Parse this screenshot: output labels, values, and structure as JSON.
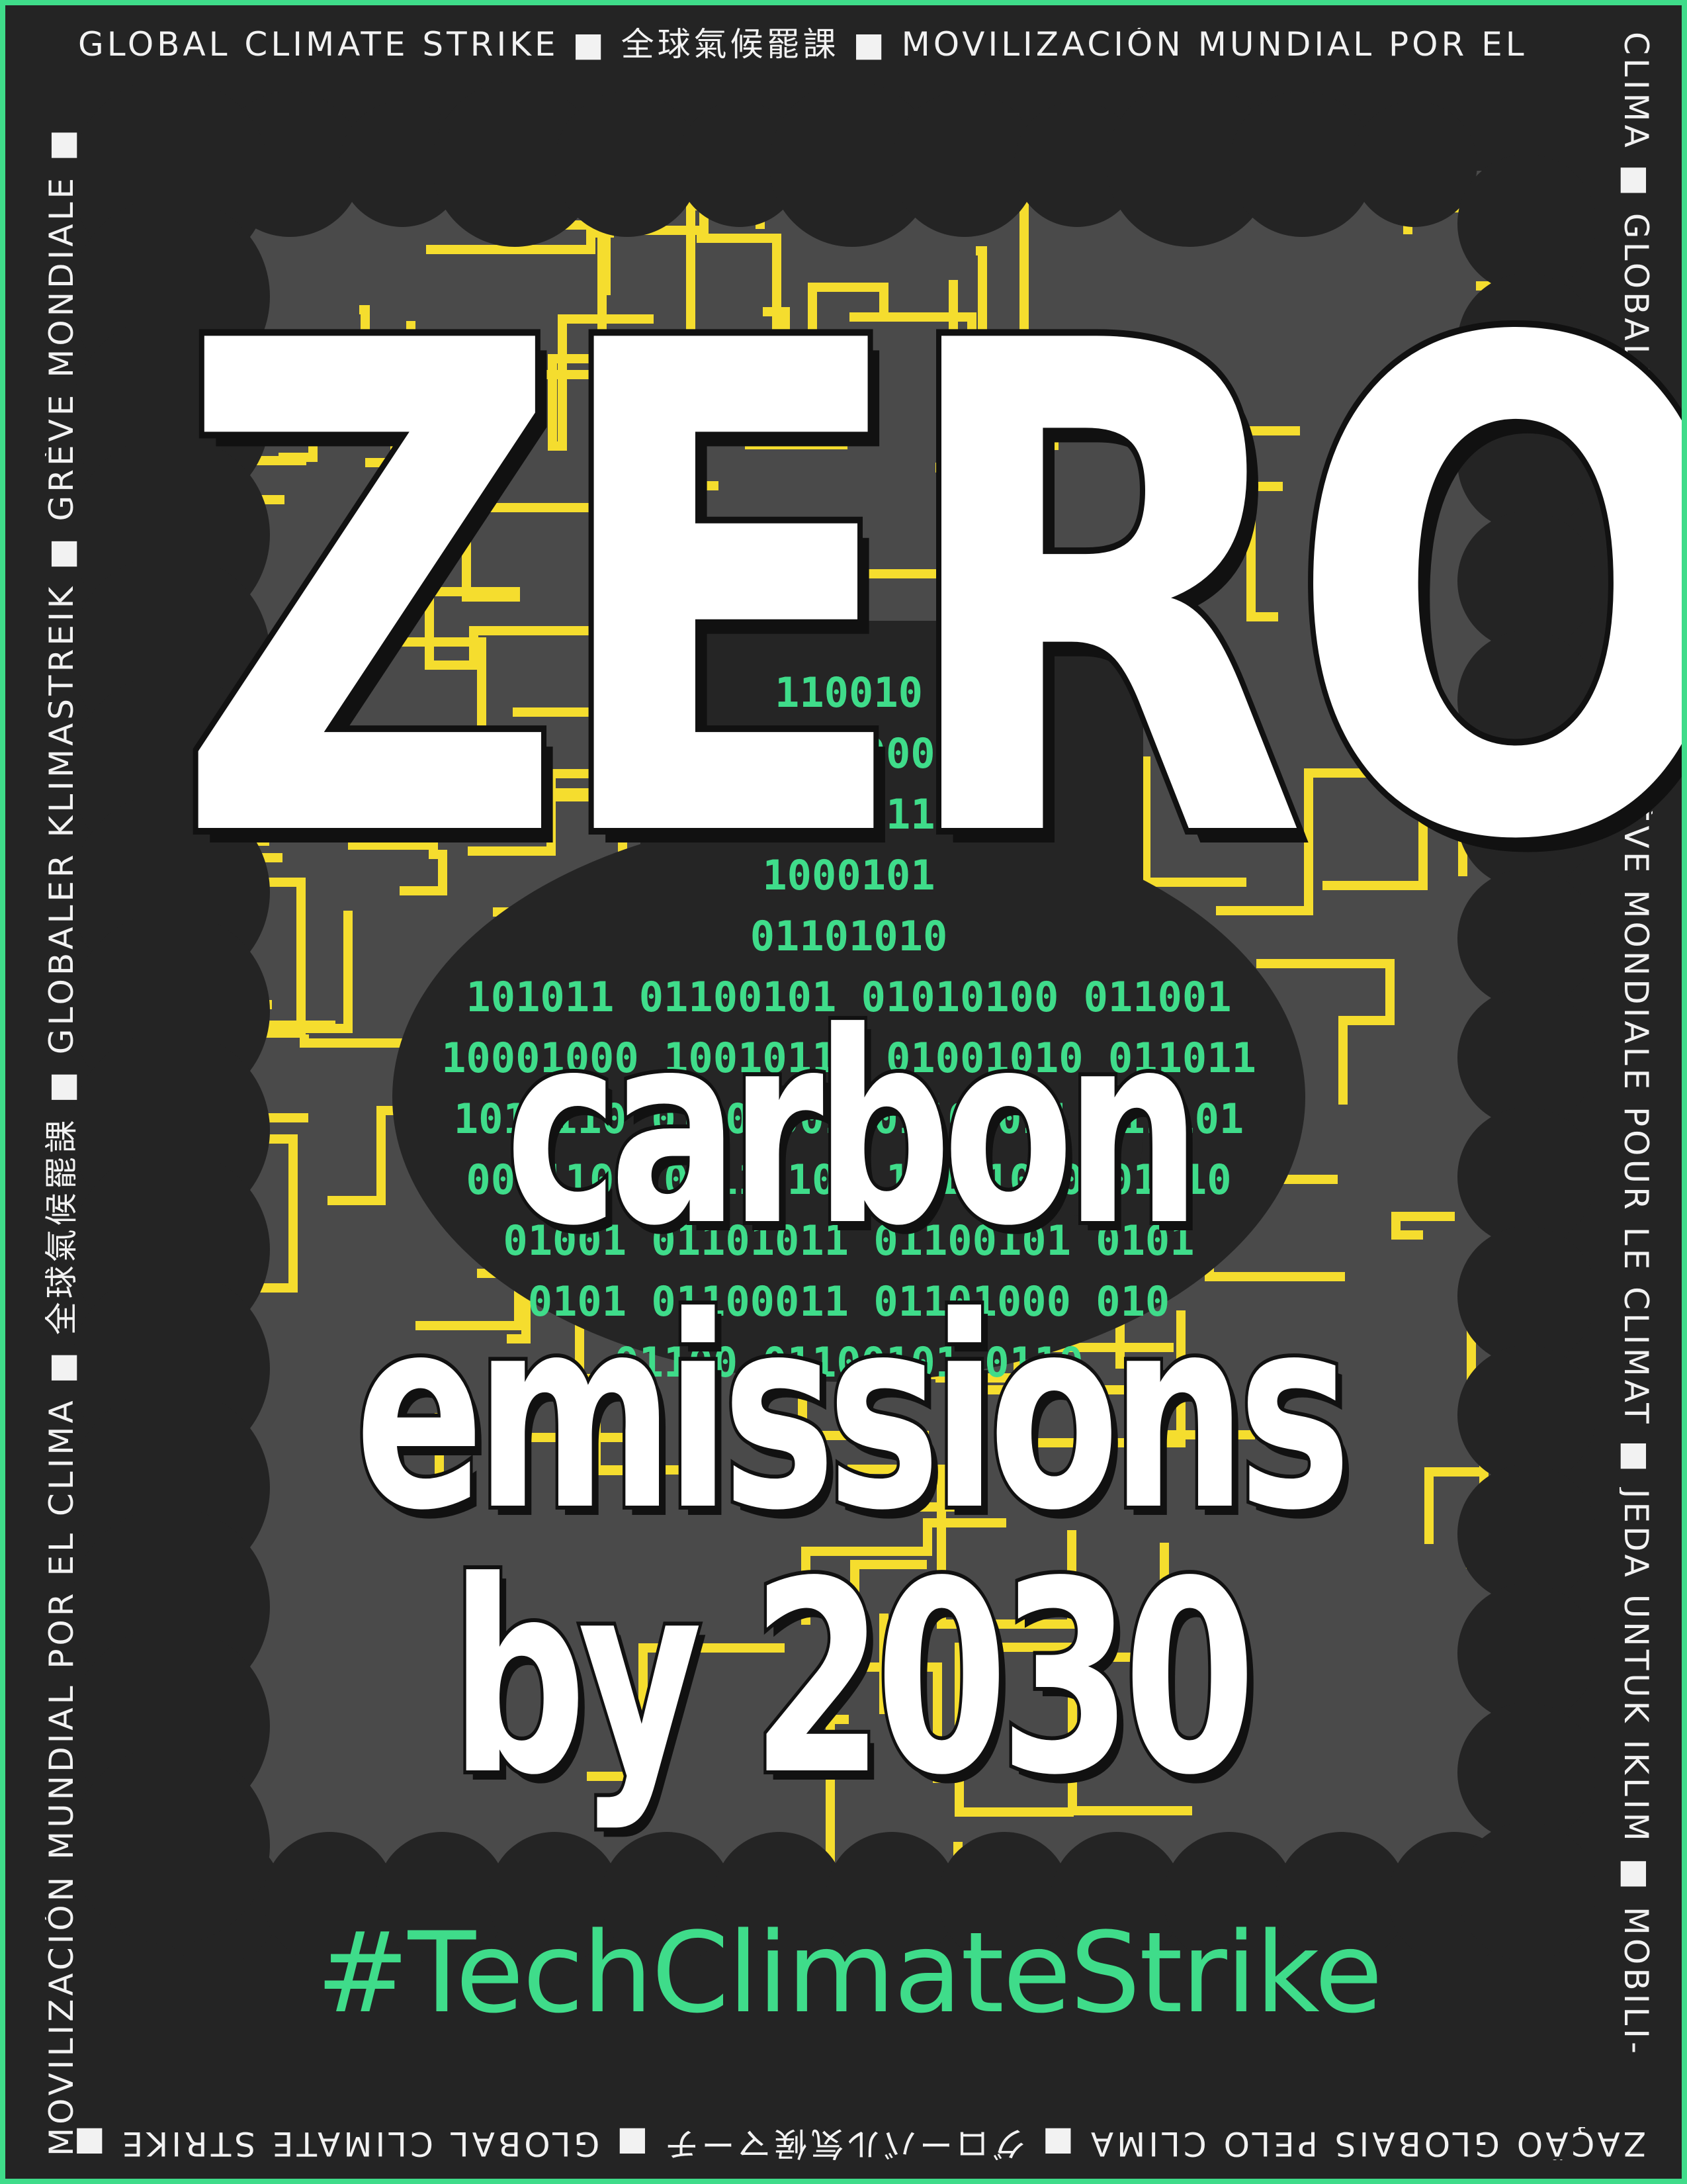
{
  "border": {
    "top": "GLOBAL CLIMATE STRIKE ■ 全球氣候罷課 ■ MOVILIZACIÓN MUNDIAL POR EL",
    "right": "CLIMA ■ GLOBALER KLIMASTREIK ■ GRÈVE MONDIALE POUR LE CLIMAT ■ JEDA UNTUK IKLIM ■ MOBILI-",
    "bottom": "ZAÇÃO GLOBAIS PELO CLIMA ■ グローバル気候マーチ ■ GLOBAL CLIMATE STRIKE ■",
    "left": "MOVILIZACIÓN MUNDIAL POR EL CLIMA ■ 全球氣候罷課 ■ GLOBALER KLIMASTREIK ■ GRÈVE MONDIALE ■"
  },
  "headline": "ZERO",
  "subline": [
    "carbon",
    "emissions",
    "by 2030"
  ],
  "binary_rows": [
    "110010",
    "0101000",
    "0100011",
    "1000101",
    "01101010",
    "101011  01100101  01010100  011001",
    "10001000  10010110  01001010  011011",
    "1010110  01101001  01101011  011101",
    "0011101  00110101  10101010  01110",
    "01001  01101011  01100101  0101",
    "0101  01100011  01101000  010",
    "01100  01100101  0110"
  ],
  "hashtag": "#TechClimateStrike",
  "colors": {
    "background": "#242424",
    "circuit": "#f5dd2e",
    "panel": "#4a4a4a",
    "binary": "#3fdc8a",
    "frame": "#3fdc8a"
  }
}
